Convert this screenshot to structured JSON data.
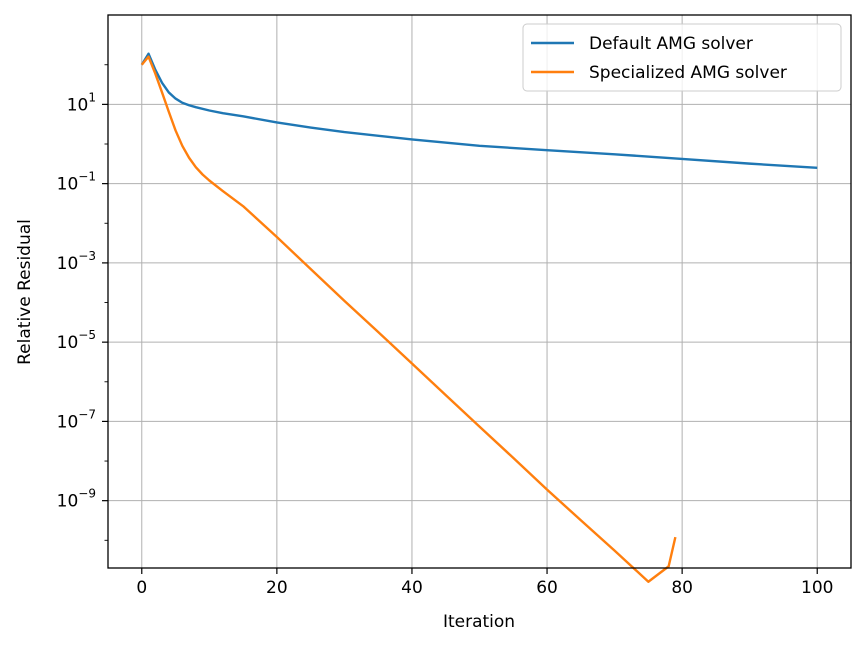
{
  "chart_data": {
    "type": "line",
    "title": "",
    "xlabel": "Iteration",
    "ylabel": "Relative Residual",
    "yscale": "log",
    "xlim": [
      -5,
      105
    ],
    "ylim": [
      2e-11,
      1800
    ],
    "grid": true,
    "legend_position": "top-right",
    "xticks": [
      0,
      20,
      40,
      60,
      80,
      100
    ],
    "xtick_labels": [
      "0",
      "20",
      "40",
      "60",
      "80",
      "100"
    ],
    "yticks": [
      10,
      0.1,
      0.001,
      1e-05,
      1e-07,
      1e-09
    ],
    "ytick_labels": [
      {
        "base": "10",
        "exp": "1"
      },
      {
        "base": "10",
        "exp": "−1"
      },
      {
        "base": "10",
        "exp": "−3"
      },
      {
        "base": "10",
        "exp": "−5"
      },
      {
        "base": "10",
        "exp": "−7"
      },
      {
        "base": "10",
        "exp": "−9"
      }
    ],
    "series": [
      {
        "name": "Default AMG solver",
        "color": "#1f77b4",
        "x": [
          0,
          1,
          2,
          3,
          4,
          5,
          6,
          7,
          8,
          10,
          12,
          15,
          20,
          25,
          30,
          40,
          50,
          60,
          70,
          80,
          90,
          100
        ],
        "y": [
          100,
          190,
          75,
          35,
          20,
          14,
          11,
          9.5,
          8.5,
          7,
          6,
          5,
          3.5,
          2.6,
          2.0,
          1.3,
          0.9,
          0.7,
          0.55,
          0.42,
          0.32,
          0.25
        ]
      },
      {
        "name": "Specialized AMG solver",
        "color": "#ff7f0e",
        "x": [
          0,
          1,
          2,
          3,
          4,
          5,
          6,
          7,
          8,
          9,
          10,
          12,
          15,
          20,
          25,
          30,
          35,
          40,
          45,
          50,
          55,
          60,
          65,
          70,
          75,
          78,
          79
        ],
        "y": [
          100,
          160,
          60,
          20,
          6.5,
          2.2,
          0.9,
          0.45,
          0.26,
          0.17,
          0.12,
          0.065,
          0.027,
          0.0045,
          0.0007,
          0.00011,
          1.8e-05,
          2.9e-06,
          4.6e-07,
          7.4e-08,
          1.2e-08,
          1.9e-09,
          3.2e-10,
          5.5e-11,
          9e-12,
          2.2e-11,
          1.2e-10
        ]
      }
    ]
  }
}
